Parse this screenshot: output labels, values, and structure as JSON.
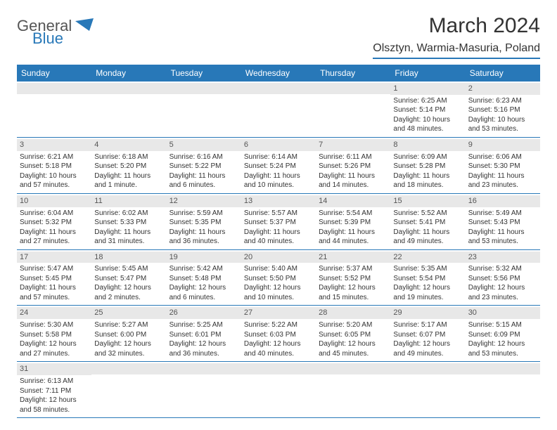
{
  "logo": {
    "general": "General",
    "blue": "Blue"
  },
  "title": "March 2024",
  "location": "Olsztyn, Warmia-Masuria, Poland",
  "weekdays": [
    "Sunday",
    "Monday",
    "Tuesday",
    "Wednesday",
    "Thursday",
    "Friday",
    "Saturday"
  ],
  "colors": {
    "accent": "#2878b8",
    "header_bg": "#2878b8",
    "daynum_bg": "#e8e8e8"
  },
  "weeks": [
    [
      null,
      null,
      null,
      null,
      null,
      {
        "n": "1",
        "sr": "Sunrise: 6:25 AM",
        "ss": "Sunset: 5:14 PM",
        "dl": "Daylight: 10 hours and 48 minutes."
      },
      {
        "n": "2",
        "sr": "Sunrise: 6:23 AM",
        "ss": "Sunset: 5:16 PM",
        "dl": "Daylight: 10 hours and 53 minutes."
      }
    ],
    [
      {
        "n": "3",
        "sr": "Sunrise: 6:21 AM",
        "ss": "Sunset: 5:18 PM",
        "dl": "Daylight: 10 hours and 57 minutes."
      },
      {
        "n": "4",
        "sr": "Sunrise: 6:18 AM",
        "ss": "Sunset: 5:20 PM",
        "dl": "Daylight: 11 hours and 1 minute."
      },
      {
        "n": "5",
        "sr": "Sunrise: 6:16 AM",
        "ss": "Sunset: 5:22 PM",
        "dl": "Daylight: 11 hours and 6 minutes."
      },
      {
        "n": "6",
        "sr": "Sunrise: 6:14 AM",
        "ss": "Sunset: 5:24 PM",
        "dl": "Daylight: 11 hours and 10 minutes."
      },
      {
        "n": "7",
        "sr": "Sunrise: 6:11 AM",
        "ss": "Sunset: 5:26 PM",
        "dl": "Daylight: 11 hours and 14 minutes."
      },
      {
        "n": "8",
        "sr": "Sunrise: 6:09 AM",
        "ss": "Sunset: 5:28 PM",
        "dl": "Daylight: 11 hours and 18 minutes."
      },
      {
        "n": "9",
        "sr": "Sunrise: 6:06 AM",
        "ss": "Sunset: 5:30 PM",
        "dl": "Daylight: 11 hours and 23 minutes."
      }
    ],
    [
      {
        "n": "10",
        "sr": "Sunrise: 6:04 AM",
        "ss": "Sunset: 5:32 PM",
        "dl": "Daylight: 11 hours and 27 minutes."
      },
      {
        "n": "11",
        "sr": "Sunrise: 6:02 AM",
        "ss": "Sunset: 5:33 PM",
        "dl": "Daylight: 11 hours and 31 minutes."
      },
      {
        "n": "12",
        "sr": "Sunrise: 5:59 AM",
        "ss": "Sunset: 5:35 PM",
        "dl": "Daylight: 11 hours and 36 minutes."
      },
      {
        "n": "13",
        "sr": "Sunrise: 5:57 AM",
        "ss": "Sunset: 5:37 PM",
        "dl": "Daylight: 11 hours and 40 minutes."
      },
      {
        "n": "14",
        "sr": "Sunrise: 5:54 AM",
        "ss": "Sunset: 5:39 PM",
        "dl": "Daylight: 11 hours and 44 minutes."
      },
      {
        "n": "15",
        "sr": "Sunrise: 5:52 AM",
        "ss": "Sunset: 5:41 PM",
        "dl": "Daylight: 11 hours and 49 minutes."
      },
      {
        "n": "16",
        "sr": "Sunrise: 5:49 AM",
        "ss": "Sunset: 5:43 PM",
        "dl": "Daylight: 11 hours and 53 minutes."
      }
    ],
    [
      {
        "n": "17",
        "sr": "Sunrise: 5:47 AM",
        "ss": "Sunset: 5:45 PM",
        "dl": "Daylight: 11 hours and 57 minutes."
      },
      {
        "n": "18",
        "sr": "Sunrise: 5:45 AM",
        "ss": "Sunset: 5:47 PM",
        "dl": "Daylight: 12 hours and 2 minutes."
      },
      {
        "n": "19",
        "sr": "Sunrise: 5:42 AM",
        "ss": "Sunset: 5:48 PM",
        "dl": "Daylight: 12 hours and 6 minutes."
      },
      {
        "n": "20",
        "sr": "Sunrise: 5:40 AM",
        "ss": "Sunset: 5:50 PM",
        "dl": "Daylight: 12 hours and 10 minutes."
      },
      {
        "n": "21",
        "sr": "Sunrise: 5:37 AM",
        "ss": "Sunset: 5:52 PM",
        "dl": "Daylight: 12 hours and 15 minutes."
      },
      {
        "n": "22",
        "sr": "Sunrise: 5:35 AM",
        "ss": "Sunset: 5:54 PM",
        "dl": "Daylight: 12 hours and 19 minutes."
      },
      {
        "n": "23",
        "sr": "Sunrise: 5:32 AM",
        "ss": "Sunset: 5:56 PM",
        "dl": "Daylight: 12 hours and 23 minutes."
      }
    ],
    [
      {
        "n": "24",
        "sr": "Sunrise: 5:30 AM",
        "ss": "Sunset: 5:58 PM",
        "dl": "Daylight: 12 hours and 27 minutes."
      },
      {
        "n": "25",
        "sr": "Sunrise: 5:27 AM",
        "ss": "Sunset: 6:00 PM",
        "dl": "Daylight: 12 hours and 32 minutes."
      },
      {
        "n": "26",
        "sr": "Sunrise: 5:25 AM",
        "ss": "Sunset: 6:01 PM",
        "dl": "Daylight: 12 hours and 36 minutes."
      },
      {
        "n": "27",
        "sr": "Sunrise: 5:22 AM",
        "ss": "Sunset: 6:03 PM",
        "dl": "Daylight: 12 hours and 40 minutes."
      },
      {
        "n": "28",
        "sr": "Sunrise: 5:20 AM",
        "ss": "Sunset: 6:05 PM",
        "dl": "Daylight: 12 hours and 45 minutes."
      },
      {
        "n": "29",
        "sr": "Sunrise: 5:17 AM",
        "ss": "Sunset: 6:07 PM",
        "dl": "Daylight: 12 hours and 49 minutes."
      },
      {
        "n": "30",
        "sr": "Sunrise: 5:15 AM",
        "ss": "Sunset: 6:09 PM",
        "dl": "Daylight: 12 hours and 53 minutes."
      }
    ],
    [
      {
        "n": "31",
        "sr": "Sunrise: 6:13 AM",
        "ss": "Sunset: 7:11 PM",
        "dl": "Daylight: 12 hours and 58 minutes."
      },
      null,
      null,
      null,
      null,
      null,
      null
    ]
  ]
}
